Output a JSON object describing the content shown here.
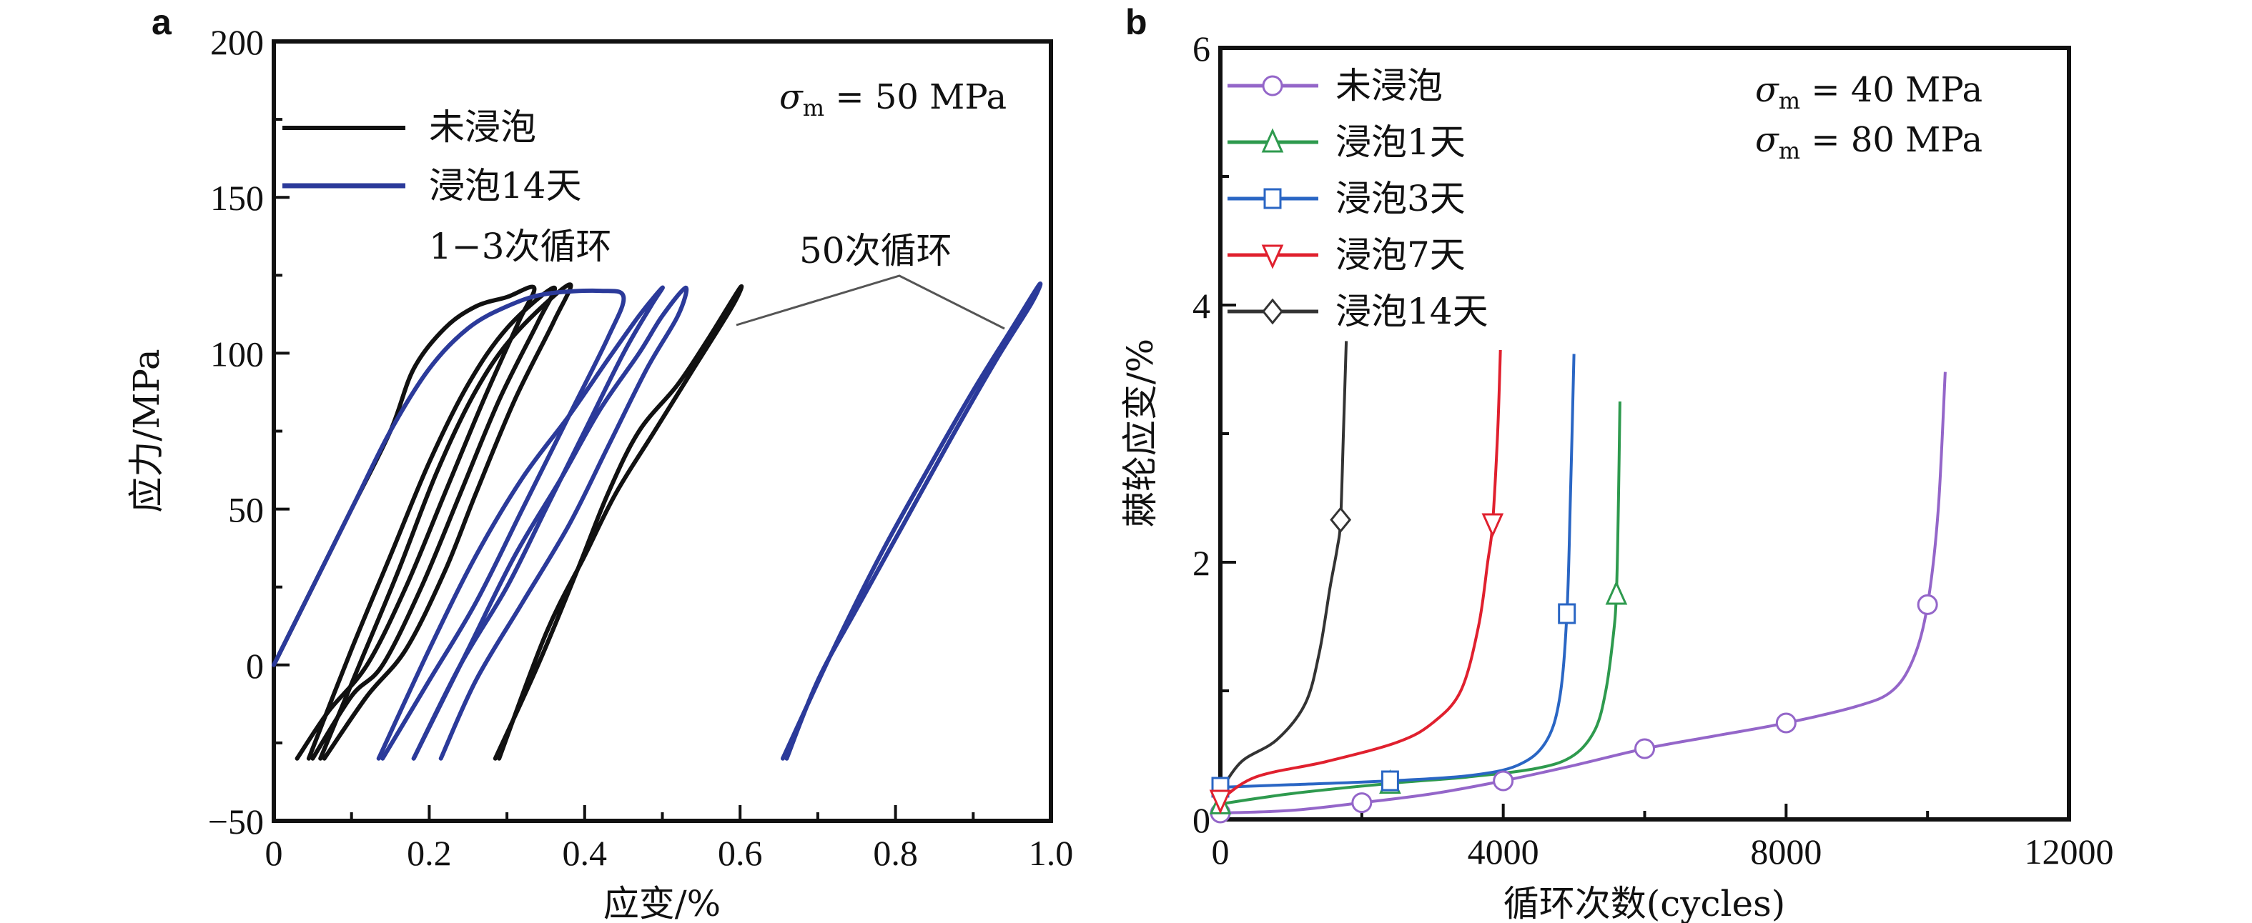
{
  "chart_data": [
    {
      "panel": "a",
      "type": "line",
      "title": "",
      "xlabel": "应变/%",
      "ylabel": "应力/MPa",
      "xlim": [
        0,
        1.0
      ],
      "ylim": [
        -50,
        200
      ],
      "xticks": [
        0,
        0.2,
        0.4,
        0.6,
        0.8,
        1.0
      ],
      "xtick_labels": [
        "0",
        "0.2",
        "0.4",
        "0.6",
        "0.8",
        "1.0"
      ],
      "yticks": [
        -50,
        0,
        50,
        100,
        150,
        200
      ],
      "ytick_labels": [
        "−50",
        "0",
        "50",
        "100",
        "150",
        "200"
      ],
      "grid": false,
      "legend": {
        "placement": "top-left",
        "entries": [
          {
            "label": "未浸泡",
            "color": "#111111"
          },
          {
            "label": "浸泡14天",
            "color": "#2b3a9a"
          }
        ]
      },
      "annotations": [
        {
          "text": "σm = 50 MPa",
          "placement": "top-right"
        },
        {
          "text": "1−3次循环",
          "x": 0.2,
          "y": 133
        },
        {
          "text": "50次循环",
          "x": 0.8,
          "y": 133,
          "pointers": [
            [
              0.6,
              108
            ],
            [
              0.93,
              108
            ]
          ]
        }
      ],
      "series": [
        {
          "name": "未浸泡",
          "color": "#111111",
          "loops": [
            {
              "x": [
                0.0,
                0.05,
                0.1,
                0.15,
                0.18,
                0.22,
                0.26,
                0.3,
                0.335,
                0.315,
                0.27,
                0.22,
                0.17,
                0.12,
                0.07,
                0.03
              ],
              "y": [
                0,
                25,
                50,
                75,
                95,
                108,
                115,
                118,
                121,
                110,
                85,
                55,
                25,
                0,
                -15,
                -30
              ]
            },
            {
              "x": [
                0.045,
                0.1,
                0.15,
                0.2,
                0.25,
                0.3,
                0.36,
                0.34,
                0.29,
                0.24,
                0.19,
                0.14,
                0.1,
                0.05
              ],
              "y": [
                -30,
                5,
                35,
                65,
                90,
                108,
                121,
                110,
                85,
                55,
                25,
                0,
                -10,
                -30
              ]
            },
            {
              "x": [
                0.06,
                0.11,
                0.16,
                0.21,
                0.26,
                0.31,
                0.38,
                0.36,
                0.31,
                0.26,
                0.22,
                0.17,
                0.12,
                0.065
              ],
              "y": [
                -30,
                0,
                30,
                62,
                88,
                106,
                122,
                110,
                85,
                55,
                30,
                5,
                -10,
                -30
              ]
            },
            {
              "x": [
                0.285,
                0.34,
                0.39,
                0.43,
                0.47,
                0.52,
                0.56,
                0.6,
                0.59,
                0.54,
                0.49,
                0.44,
                0.4,
                0.35,
                0.29
              ],
              "y": [
                -30,
                0,
                30,
                55,
                75,
                90,
                105,
                121,
                115,
                95,
                75,
                55,
                35,
                10,
                -30
              ]
            }
          ]
        },
        {
          "name": "浸泡14天",
          "color": "#2b3a9a",
          "loops": [
            {
              "x": [
                0.0,
                0.05,
                0.1,
                0.15,
                0.2,
                0.25,
                0.3,
                0.35,
                0.42,
                0.45,
                0.43,
                0.38,
                0.32,
                0.26,
                0.2,
                0.14
              ],
              "y": [
                0,
                25,
                50,
                75,
                95,
                108,
                115,
                119,
                120,
                118,
                105,
                80,
                50,
                20,
                -5,
                -30
              ]
            },
            {
              "x": [
                0.135,
                0.2,
                0.26,
                0.32,
                0.38,
                0.43,
                0.47,
                0.5,
                0.485,
                0.45,
                0.4,
                0.35,
                0.3,
                0.24,
                0.18
              ],
              "y": [
                -30,
                5,
                35,
                60,
                80,
                98,
                112,
                121,
                115,
                100,
                75,
                50,
                25,
                0,
                -30
              ]
            },
            {
              "x": [
                0.18,
                0.25,
                0.31,
                0.37,
                0.42,
                0.47,
                0.5,
                0.53,
                0.52,
                0.48,
                0.43,
                0.38,
                0.32,
                0.26,
                0.215
              ],
              "y": [
                -30,
                5,
                35,
                60,
                82,
                100,
                112,
                121,
                112,
                95,
                70,
                45,
                20,
                -5,
                -30
              ]
            },
            {
              "x": [
                0.655,
                0.72,
                0.78,
                0.84,
                0.9,
                0.95,
                0.985,
                0.975,
                0.93,
                0.87,
                0.81,
                0.75,
                0.7,
                0.66
              ],
              "y": [
                -30,
                5,
                35,
                62,
                88,
                108,
                122,
                116,
                98,
                72,
                45,
                18,
                -5,
                -30
              ]
            }
          ]
        }
      ]
    },
    {
      "panel": "b",
      "type": "line",
      "title": "",
      "xlabel": "循环次数(cycles)",
      "ylabel": "棘轮应变/%",
      "xlim": [
        0,
        12000
      ],
      "ylim": [
        0,
        6
      ],
      "xticks": [
        0,
        4000,
        8000,
        12000
      ],
      "xtick_labels": [
        "0",
        "4000",
        "8000",
        "12000"
      ],
      "yticks": [
        0,
        2,
        4,
        6
      ],
      "ytick_labels": [
        "0",
        "2",
        "4",
        "6"
      ],
      "grid": false,
      "legend": {
        "placement": "top-left",
        "entries": [
          {
            "label": "未浸泡",
            "color": "#9466c9",
            "marker": "circle"
          },
          {
            "label": "浸泡1天",
            "color": "#2e9a4e",
            "marker": "triangle-up"
          },
          {
            "label": "浸泡3天",
            "color": "#2a66c4",
            "marker": "square"
          },
          {
            "label": "浸泡7天",
            "color": "#e0202e",
            "marker": "triangle-down"
          },
          {
            "label": "浸泡14天",
            "color": "#333333",
            "marker": "diamond"
          }
        ]
      },
      "annotations": [
        {
          "text": "σm = 40 MPa",
          "placement": "top-right"
        },
        {
          "text": "σm = 80 MPa",
          "placement": "top-right"
        }
      ],
      "series": [
        {
          "name": "未浸泡",
          "color": "#9466c9",
          "marker": "circle",
          "x": [
            0,
            1000,
            2000,
            3000,
            4000,
            5000,
            6000,
            7000,
            8000,
            9000,
            9500,
            9800,
            10000,
            10150,
            10250
          ],
          "y": [
            0.05,
            0.07,
            0.13,
            0.2,
            0.3,
            0.42,
            0.55,
            0.65,
            0.75,
            0.88,
            1.0,
            1.25,
            1.67,
            2.4,
            3.48
          ],
          "markers_x": [
            0,
            2000,
            4000,
            6000,
            8000,
            10000
          ],
          "markers_y": [
            0.05,
            0.13,
            0.3,
            0.55,
            0.75,
            1.67
          ]
        },
        {
          "name": "浸泡1天",
          "color": "#2e9a4e",
          "marker": "triangle-up",
          "x": [
            0,
            1000,
            2400,
            3500,
            4500,
            5000,
            5300,
            5450,
            5550,
            5600,
            5630,
            5650
          ],
          "y": [
            0.12,
            0.2,
            0.28,
            0.33,
            0.4,
            0.5,
            0.7,
            1.0,
            1.4,
            1.75,
            2.5,
            3.25
          ],
          "markers_x": [
            0,
            2400,
            5600
          ],
          "markers_y": [
            0.12,
            0.28,
            1.75
          ]
        },
        {
          "name": "浸泡3天",
          "color": "#2a66c4",
          "marker": "square",
          "x": [
            0,
            1000,
            2400,
            3500,
            4200,
            4600,
            4800,
            4900,
            4950,
            5000
          ],
          "y": [
            0.25,
            0.27,
            0.3,
            0.34,
            0.42,
            0.6,
            0.95,
            1.6,
            2.5,
            3.62
          ],
          "markers_x": [
            0,
            2400,
            4900
          ],
          "markers_y": [
            0.25,
            0.3,
            1.6
          ]
        },
        {
          "name": "浸泡7天",
          "color": "#e0202e",
          "marker": "triangle-down",
          "x": [
            0,
            500,
            1500,
            2500,
            3000,
            3400,
            3650,
            3780,
            3850,
            3920,
            3960
          ],
          "y": [
            0.15,
            0.33,
            0.45,
            0.6,
            0.75,
            1.0,
            1.5,
            2.0,
            2.3,
            3.0,
            3.65
          ],
          "markers_x": [
            0,
            3850
          ],
          "markers_y": [
            0.15,
            2.3
          ]
        },
        {
          "name": "浸泡14天",
          "color": "#333333",
          "marker": "diamond",
          "x": [
            0,
            300,
            800,
            1200,
            1400,
            1550,
            1650,
            1700,
            1740,
            1780
          ],
          "y": [
            0.22,
            0.45,
            0.62,
            0.9,
            1.3,
            1.8,
            2.1,
            2.33,
            3.0,
            3.72
          ],
          "markers_x": [
            1700
          ],
          "markers_y": [
            2.33
          ]
        }
      ]
    }
  ],
  "labels": {
    "panel_a": "a",
    "panel_b": "b",
    "a_sigma": "σ",
    "a_sigma_sub": "m",
    "a_sigma_rest": " = 50 MPa",
    "a_note_13": "1−3次循环",
    "a_note_50": "50次循环",
    "b_sigma_rest_1": " = 40 MPa",
    "b_sigma_rest_2": " = 80 MPa"
  }
}
